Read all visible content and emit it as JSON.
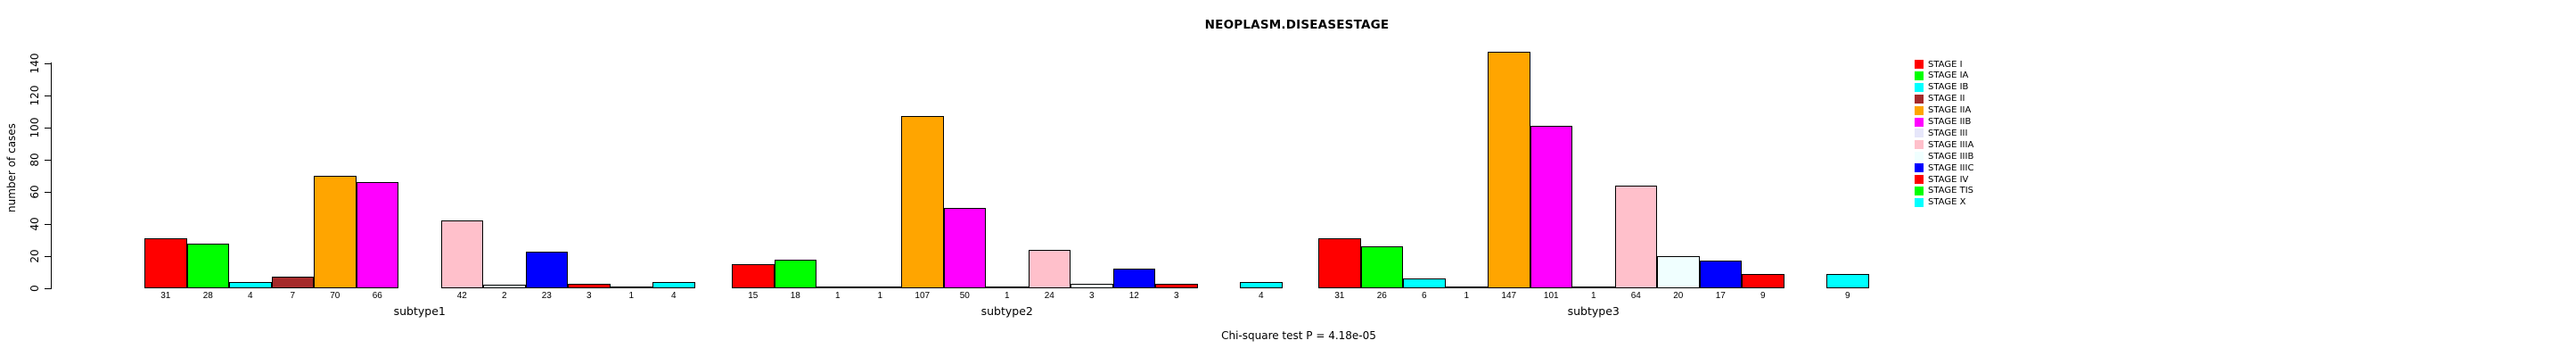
{
  "chart_data": {
    "type": "bar",
    "title": "NEOPLASM.DISEASESTAGE",
    "ylabel": "number of cases",
    "footnote": "Chi-square test P = 4.18e-05",
    "groups": [
      "subtype1",
      "subtype2",
      "subtype3"
    ],
    "ylim": [
      0,
      140
    ],
    "yticks": [
      0,
      20,
      40,
      60,
      80,
      100,
      120,
      140
    ],
    "grid": false,
    "legend_position": "right",
    "bar_border_color": "#000000",
    "series": [
      {
        "name": "STAGE I",
        "color": "#FF0000",
        "values": [
          31,
          15,
          31
        ]
      },
      {
        "name": "STAGE IA",
        "color": "#00FF00",
        "values": [
          28,
          18,
          26
        ]
      },
      {
        "name": "STAGE IB",
        "color": "#00FFFF",
        "values": [
          4,
          1,
          6
        ]
      },
      {
        "name": "STAGE II",
        "color": "#A52A2A",
        "values": [
          7,
          1,
          1
        ]
      },
      {
        "name": "STAGE IIA",
        "color": "#FFA500",
        "values": [
          70,
          107,
          147
        ]
      },
      {
        "name": "STAGE IIB",
        "color": "#FF00FF",
        "values": [
          66,
          50,
          101
        ]
      },
      {
        "name": "STAGE III",
        "color": "#E6E6FA",
        "values": [
          null,
          1,
          1
        ]
      },
      {
        "name": "STAGE IIIA",
        "color": "#FFC0CB",
        "values": [
          42,
          24,
          64
        ]
      },
      {
        "name": "STAGE IIIB",
        "color": "#F0FFFF",
        "values": [
          2,
          3,
          20
        ]
      },
      {
        "name": "STAGE IIIC",
        "color": "#0000FF",
        "values": [
          23,
          12,
          17
        ]
      },
      {
        "name": "STAGE IV",
        "color": "#FF0000",
        "values": [
          3,
          3,
          9
        ]
      },
      {
        "name": "STAGE TIS",
        "color": "#00FF00",
        "values": [
          1,
          null,
          null
        ]
      },
      {
        "name": "STAGE X",
        "color": "#00FFFF",
        "values": [
          4,
          4,
          9
        ]
      }
    ]
  }
}
